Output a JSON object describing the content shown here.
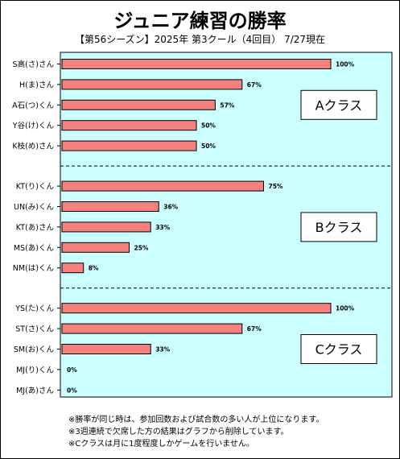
{
  "chart_data": {
    "type": "bar",
    "orientation": "horizontal",
    "title": "ジュニア練習の勝率",
    "subtitle": "【第56シーズン】2025年 第3クール（4回目） 7/27現在",
    "categories": [
      "S高(さ)さん",
      "H(ま)さん",
      "A石(つ)くん",
      "Y谷(け)くん",
      "K枝(め)さん",
      "KT(り)くん",
      "UN(み)くん",
      "KT(あ)さん",
      "MS(あ)くん",
      "NM(は)くん",
      "YS(た)くん",
      "ST(さ)くん",
      "SM(お)くん",
      "MJ(り)くん",
      "MJ(あ)さん"
    ],
    "values": [
      100,
      67,
      57,
      50,
      50,
      75,
      36,
      33,
      25,
      8,
      100,
      67,
      33,
      0,
      0
    ],
    "value_labels": [
      "100%",
      "67%",
      "57%",
      "50%",
      "50%",
      "75%",
      "36%",
      "33%",
      "25%",
      "8%",
      "100%",
      "67%",
      "33%",
      "0%",
      "0%"
    ],
    "xlim": [
      0,
      100
    ],
    "groups": [
      {
        "label": "Aクラス",
        "count": 5
      },
      {
        "label": "Bクラス",
        "count": 5
      },
      {
        "label": "Cクラス",
        "count": 5
      }
    ],
    "bar_color": "#f4817e",
    "plot_bg_color": "#ccffff",
    "grid": false,
    "legend": "none"
  },
  "notes": [
    "※勝率が同じ時は、参加回数および試合数の多い人が上位になります。",
    "※3週連続で欠席した方の結果はグラフから削除しています。",
    "※Cクラスは月に1度程度しかゲームを行いません。"
  ]
}
